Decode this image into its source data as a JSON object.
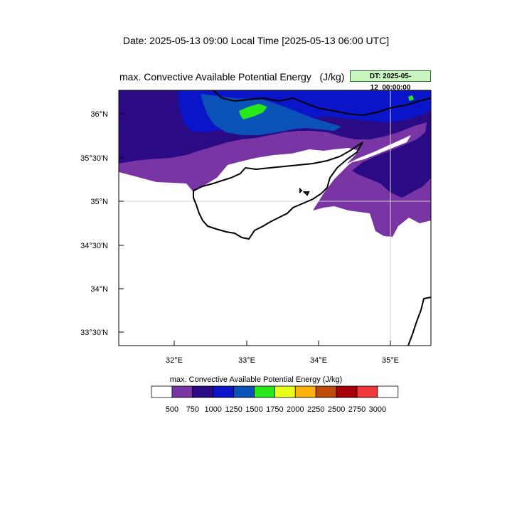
{
  "header": {
    "date_line": "Date: 2025-05-13  09:00 Local Time [2025-05-13  06:00 UTC]",
    "plot_title": "max. Convective Available Potential Energy   (J/kg)",
    "dt_badge": "DT: 2025-05-12_00:00:00"
  },
  "map": {
    "lat_labels": [
      "36°N",
      "35°30'N",
      "35°N",
      "34°30'N",
      "34°N",
      "33°30'N"
    ],
    "lon_labels": [
      "32°E",
      "33°E",
      "34°E",
      "35°E"
    ],
    "colors": {
      "c500": "#7a35a5",
      "c750": "#2a0a85",
      "c1000": "#0a14c8",
      "c1250": "#0a52b8",
      "c1500": "#28e81a"
    }
  },
  "colorbar": {
    "title": "max. Convective Available Potential Energy  (J/kg)",
    "labels": [
      "500",
      "750",
      "1000",
      "1250",
      "1500",
      "1750",
      "2000",
      "2250",
      "2500",
      "2750",
      "3000"
    ],
    "colors": [
      "#ffffff",
      "#7a35a5",
      "#2a0a85",
      "#0a14c8",
      "#0a52b8",
      "#28e81a",
      "#e8ff1a",
      "#ffb00a",
      "#c04a0a",
      "#a8000a",
      "#f03838",
      "#ffffff"
    ]
  }
}
